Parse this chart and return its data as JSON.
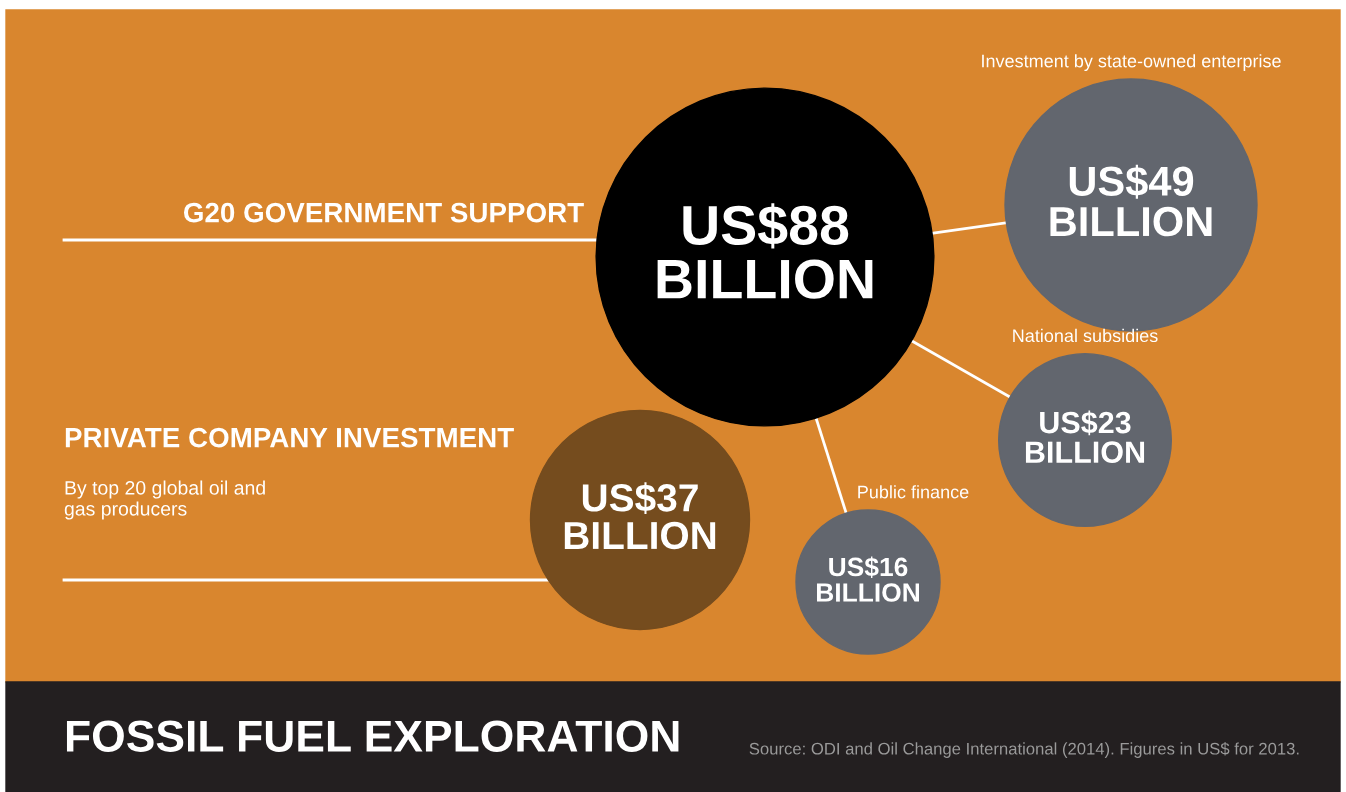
{
  "chart_data": {
    "type": "other",
    "title": "FOSSIL FUEL EXPLORATION",
    "categories": [
      "G20 GOVERNMENT SUPPORT",
      "Investment by state-owned enterprise",
      "National subsidies",
      "Public finance",
      "PRIVATE COMPANY INVESTMENT"
    ],
    "values": [
      88,
      49,
      23,
      16,
      37
    ],
    "value_labels": [
      "US$88\nBILLION",
      "US$49\nBILLION",
      "US$23\nBILLION",
      "US$16\nBILLION",
      "US$37\nBILLION"
    ],
    "colors": [
      "#000000",
      "#62666e",
      "#62666e",
      "#62666e",
      "#754c1e"
    ],
    "annotations": [
      "By top 20 global oil and\ngas producers",
      "Source: ODI and Oil Change International (2014). Figures in US$ for 2013."
    ]
  }
}
